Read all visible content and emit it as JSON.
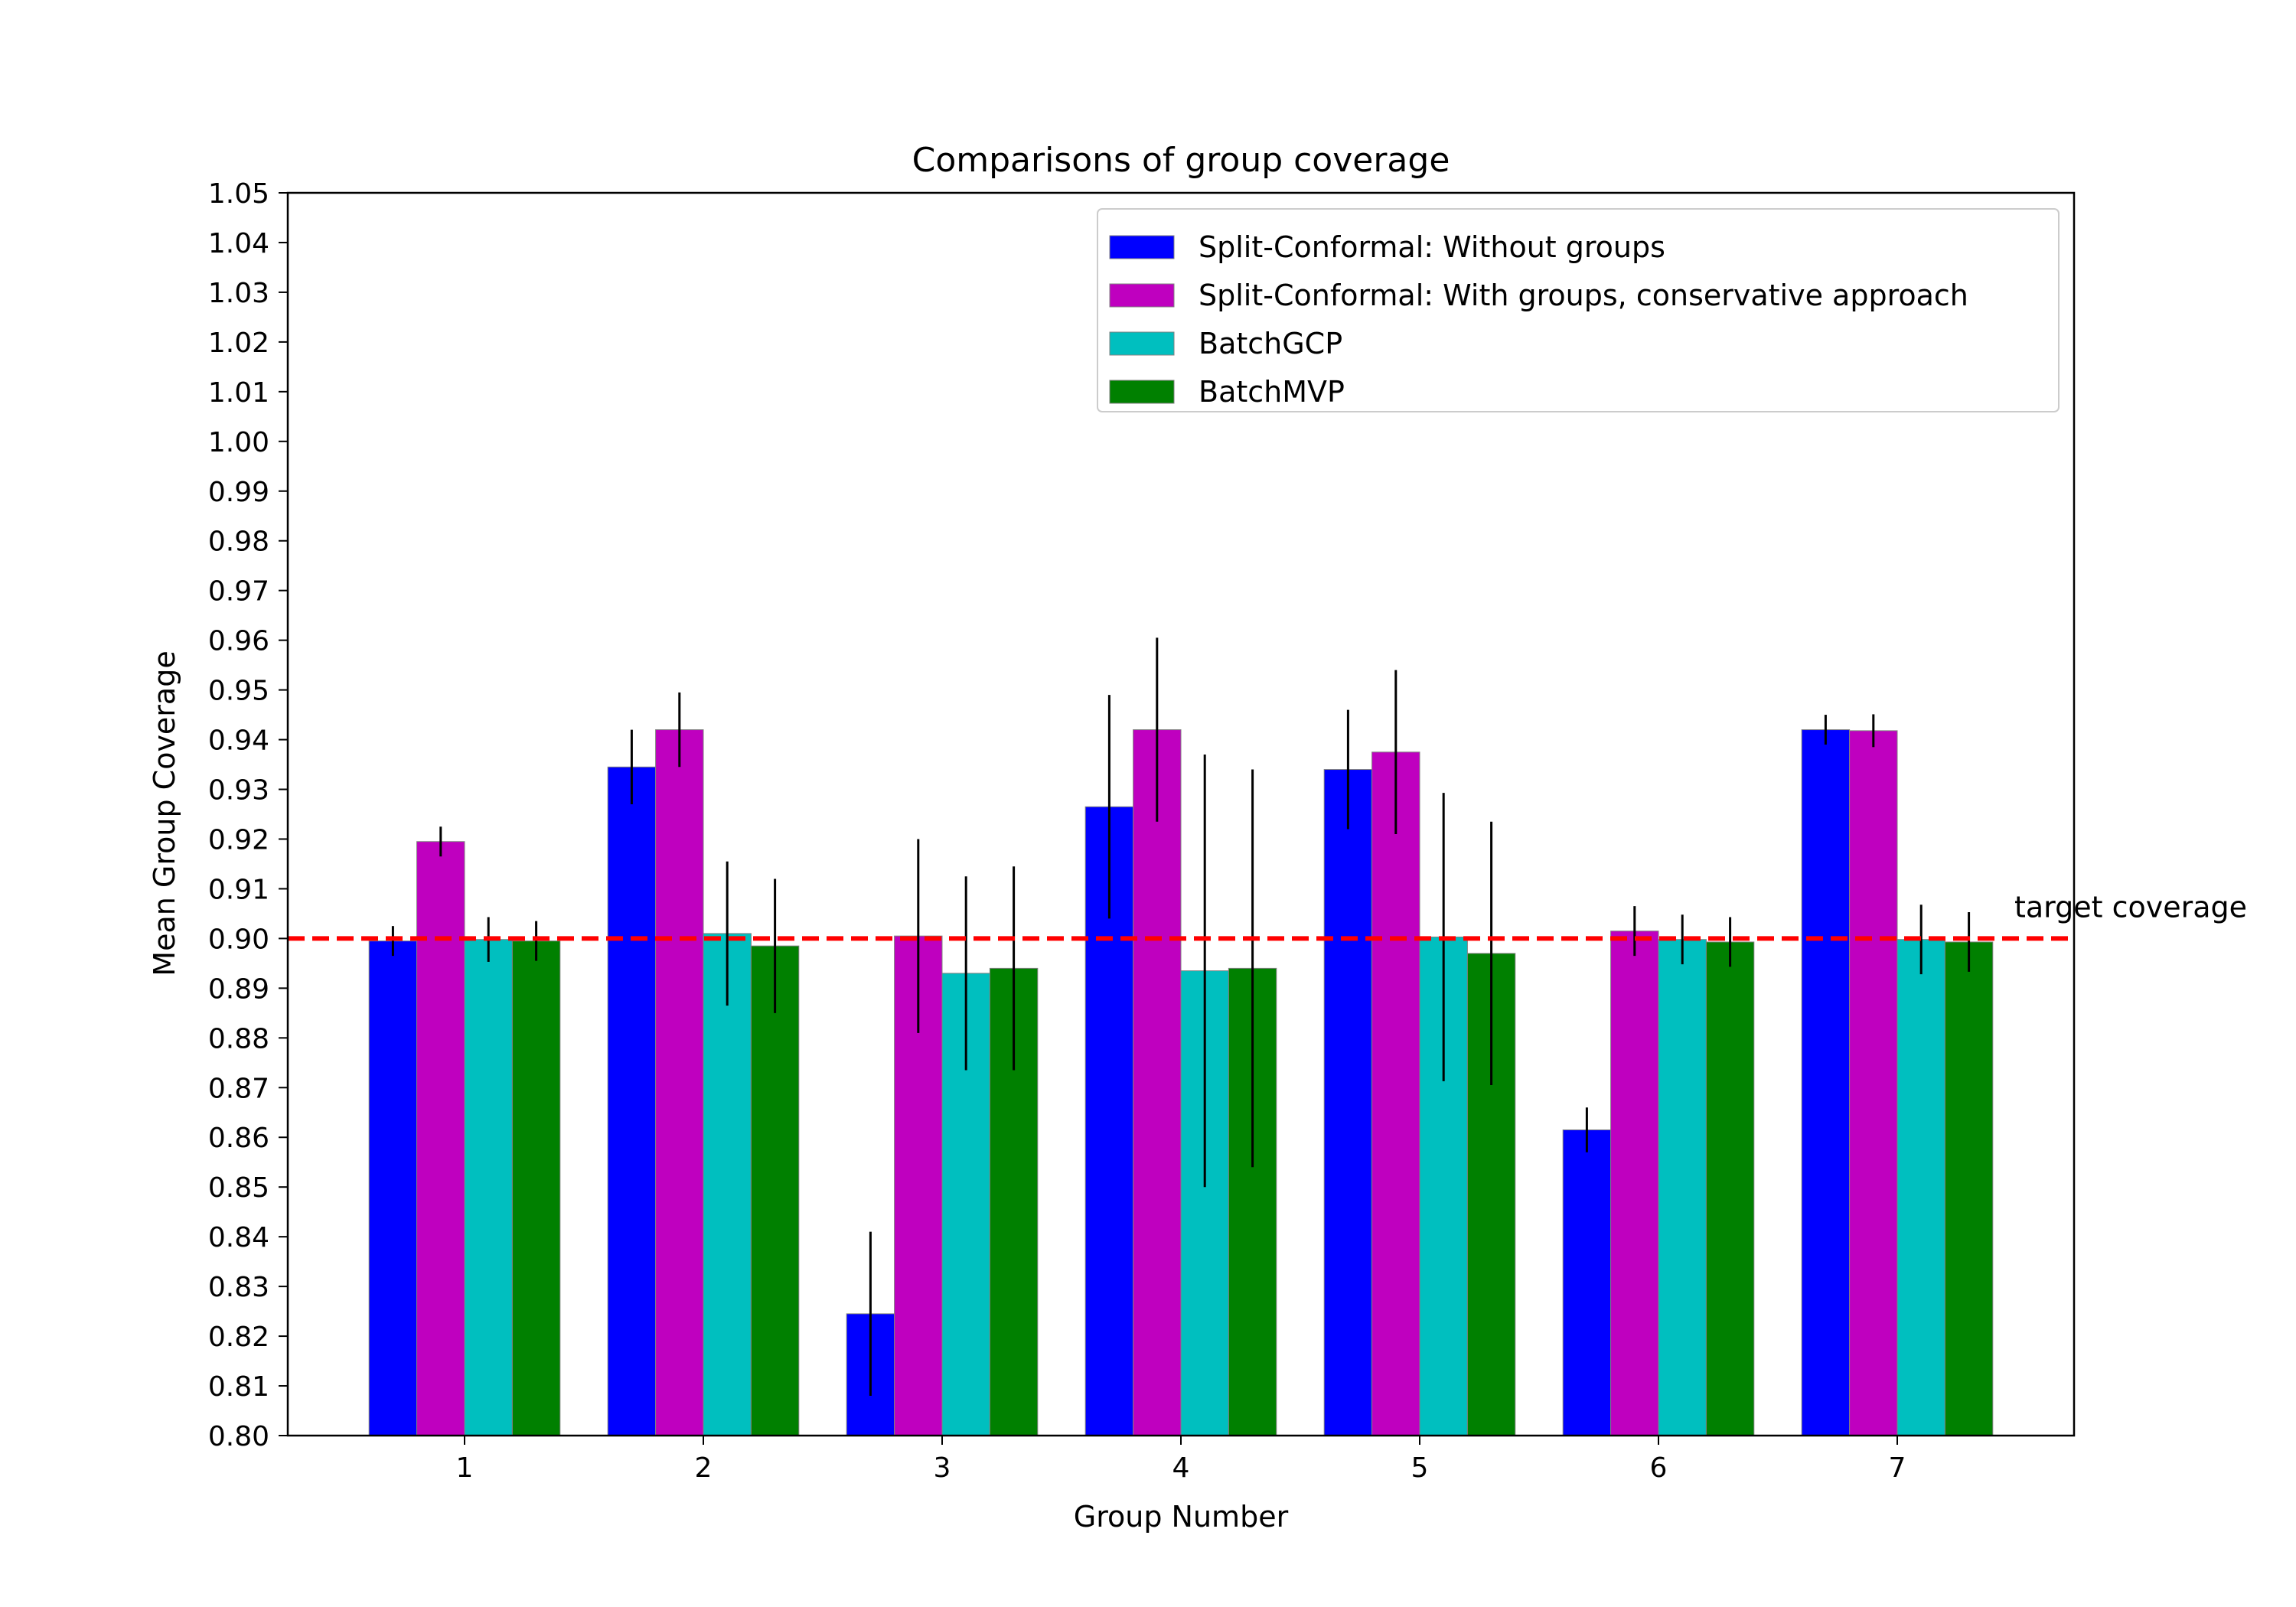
{
  "chart_data": {
    "type": "bar",
    "title": "Comparisons of group coverage",
    "xlabel": "Group Number",
    "ylabel": "Mean Group Coverage",
    "ylim": [
      0.8,
      1.05
    ],
    "yticks": [
      "0.80",
      "0.81",
      "0.82",
      "0.83",
      "0.84",
      "0.85",
      "0.86",
      "0.87",
      "0.88",
      "0.89",
      "0.90",
      "0.91",
      "0.92",
      "0.93",
      "0.94",
      "0.95",
      "0.96",
      "0.97",
      "0.98",
      "0.99",
      "1.00",
      "1.01",
      "1.02",
      "1.03",
      "1.04",
      "1.05"
    ],
    "categories": [
      "1",
      "2",
      "3",
      "4",
      "5",
      "6",
      "7"
    ],
    "series": [
      {
        "name": "Split-Conformal: Without groups",
        "color": "#0000ff",
        "values": [
          0.8995,
          0.9345,
          0.8245,
          0.9265,
          0.934,
          0.8615,
          0.942
        ],
        "errors": [
          0.003,
          0.0075,
          0.0165,
          0.0225,
          0.012,
          0.0045,
          0.003
        ]
      },
      {
        "name": "Split-Conformal: With groups, conservative approach",
        "color": "#bf00bf",
        "values": [
          0.9195,
          0.942,
          0.9005,
          0.942,
          0.9375,
          0.9015,
          0.9418
        ],
        "errors": [
          0.003,
          0.0075,
          0.0195,
          0.0185,
          0.0165,
          0.005,
          0.0033
        ]
      },
      {
        "name": "BatchGCP",
        "color": "#00bfbf",
        "values": [
          0.8998,
          0.901,
          0.893,
          0.8935,
          0.9003,
          0.8998,
          0.8998
        ],
        "errors": [
          0.0045,
          0.0145,
          0.0195,
          0.0435,
          0.029,
          0.005,
          0.007
        ]
      },
      {
        "name": "BatchMVP",
        "color": "#008000",
        "values": [
          0.8995,
          0.8985,
          0.894,
          0.894,
          0.897,
          0.8993,
          0.8993
        ],
        "errors": [
          0.004,
          0.0135,
          0.0205,
          0.04,
          0.0265,
          0.005,
          0.006
        ]
      }
    ],
    "reference_line": {
      "value": 0.9,
      "label": "target coverage",
      "color": "#ff0000",
      "style": "dashed"
    },
    "legend_placement": "top-right",
    "grid": false
  }
}
